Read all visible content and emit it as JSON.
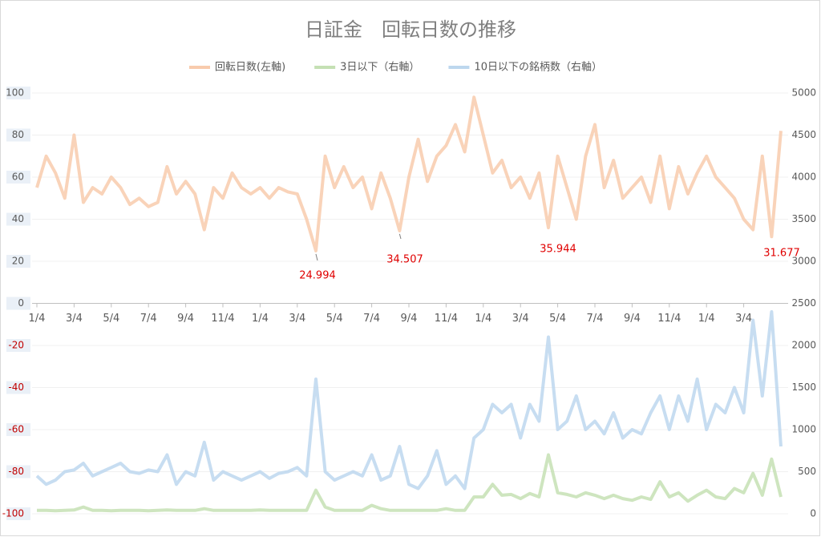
{
  "chart_data": {
    "type": "line",
    "title": "日証金　回転日数の推移",
    "categories": [
      "1/4",
      null,
      null,
      null,
      "3/4",
      null,
      null,
      null,
      "5/4",
      null,
      null,
      null,
      "7/4",
      null,
      null,
      null,
      "9/4",
      null,
      null,
      null,
      "11/4",
      null,
      null,
      null,
      "1/4",
      null,
      null,
      null,
      "3/4",
      null,
      null,
      null,
      "5/4",
      null,
      null,
      null,
      "7/4",
      null,
      null,
      null,
      "9/4",
      null,
      null,
      null,
      "11/4",
      null,
      null,
      null,
      "1/4",
      null,
      null,
      null,
      "3/4",
      null,
      null,
      null,
      "5/4",
      null,
      null,
      null,
      "7/4",
      null,
      null,
      null,
      "9/4",
      null,
      null,
      null,
      "11/4",
      null,
      null,
      null,
      "1/4",
      null,
      null,
      null,
      "3/4",
      null,
      null,
      null,
      null
    ],
    "ylim": [
      -100,
      100
    ],
    "yticks": [
      100,
      80,
      60,
      40,
      20,
      0,
      -20,
      -40,
      -60,
      -80,
      -100
    ],
    "y2lim": [
      0,
      5000
    ],
    "y2ticks": [
      5000,
      4500,
      4000,
      3500,
      3000,
      2500,
      2000,
      1500,
      1000,
      500,
      0
    ],
    "grid": true,
    "legend": "top",
    "series": [
      {
        "name": "回転日数(左軸)",
        "color": "#f8cbad",
        "values": [
          55,
          70,
          62,
          50,
          80,
          48,
          55,
          52,
          60,
          55,
          47,
          50,
          46,
          48,
          65,
          52,
          58,
          52,
          35,
          55,
          50,
          62,
          55,
          52,
          55,
          50,
          55,
          53,
          52,
          40,
          24.994,
          70,
          55,
          65,
          55,
          60,
          45,
          62,
          50,
          34.507,
          60,
          78,
          58,
          70,
          75,
          85,
          72,
          98,
          80,
          62,
          68,
          55,
          60,
          50,
          62,
          35.944,
          70,
          55,
          40,
          70,
          85,
          55,
          68,
          50,
          55,
          60,
          48,
          70,
          45,
          65,
          52,
          62,
          70,
          60,
          55,
          50,
          40,
          35,
          70,
          31.677,
          82
        ]
      },
      {
        "name": "3日以下（右軸）",
        "color": "#c5e0b4",
        "axis": "y2",
        "values": [
          40,
          40,
          35,
          40,
          45,
          80,
          40,
          40,
          35,
          40,
          40,
          40,
          35,
          40,
          45,
          40,
          40,
          40,
          60,
          40,
          40,
          40,
          40,
          40,
          45,
          40,
          40,
          40,
          40,
          40,
          280,
          80,
          40,
          40,
          40,
          40,
          100,
          60,
          40,
          40,
          40,
          40,
          40,
          40,
          60,
          40,
          40,
          200,
          200,
          350,
          220,
          230,
          180,
          240,
          200,
          700,
          250,
          230,
          200,
          250,
          220,
          180,
          220,
          180,
          160,
          200,
          170,
          380,
          200,
          250,
          150,
          220,
          280,
          200,
          180,
          300,
          250,
          480,
          220,
          650,
          200
        ]
      },
      {
        "name": "10日以下の銘柄数（右軸）",
        "color": "#bdd7ee",
        "axis": "y2",
        "values": [
          450,
          350,
          400,
          500,
          520,
          600,
          450,
          500,
          550,
          600,
          500,
          480,
          520,
          500,
          700,
          350,
          500,
          450,
          850,
          400,
          500,
          450,
          400,
          450,
          500,
          420,
          480,
          500,
          550,
          450,
          1600,
          500,
          400,
          450,
          500,
          450,
          700,
          400,
          450,
          800,
          350,
          300,
          450,
          750,
          350,
          450,
          300,
          900,
          1000,
          1300,
          1200,
          1300,
          900,
          1300,
          1100,
          2100,
          1000,
          1100,
          1400,
          1000,
          1100,
          950,
          1200,
          900,
          1000,
          950,
          1200,
          1400,
          1000,
          1400,
          1100,
          1600,
          1000,
          1300,
          1200,
          1500,
          1200,
          2300,
          1400,
          2400,
          800
        ]
      }
    ]
  }
}
